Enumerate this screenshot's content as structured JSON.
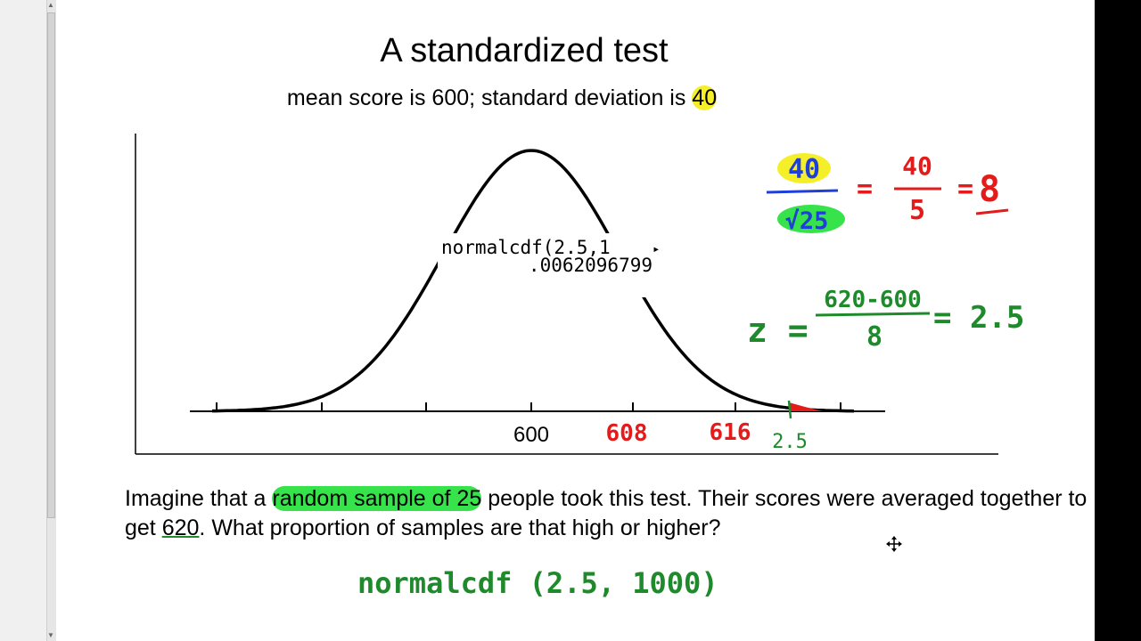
{
  "slide": {
    "title": "A standardized test",
    "subtitle_pre": "mean score is 600; standard deviation is ",
    "subtitle_sd": "40",
    "calc_line1": "normalcdf(2.5,1",
    "calc_line2": ".0062096799",
    "axis_mean_label": "600",
    "paragraph": {
      "p1": "Imagine that a ",
      "p1_highlight": "random sample of 25",
      "p2": " people took this test.  Their scores were averaged together to get ",
      "p2_underline": "620",
      "p3": ".  What proportion of samples are that high or higher?"
    }
  },
  "handwriting": {
    "tick_608": "608",
    "tick_616": "616",
    "z_value": "2.5",
    "sigma": "40",
    "root_n": "√25",
    "eq1_num": "40",
    "eq1_den": "5",
    "eq1_result": "8",
    "z_label": "z =",
    "z_num": "620-600",
    "z_den": "8",
    "z_result": "= 2.5",
    "calc_command": "normalcdf (2.5, 1000)"
  },
  "colors": {
    "ink_red": "#e31b1b",
    "ink_green": "#1e8a2b",
    "ink_blue": "#1f3fd8",
    "highlight_yellow": "#f5ef2a",
    "highlight_green": "#37e34b"
  },
  "icons": {
    "cursor": "move-cursor-icon"
  }
}
